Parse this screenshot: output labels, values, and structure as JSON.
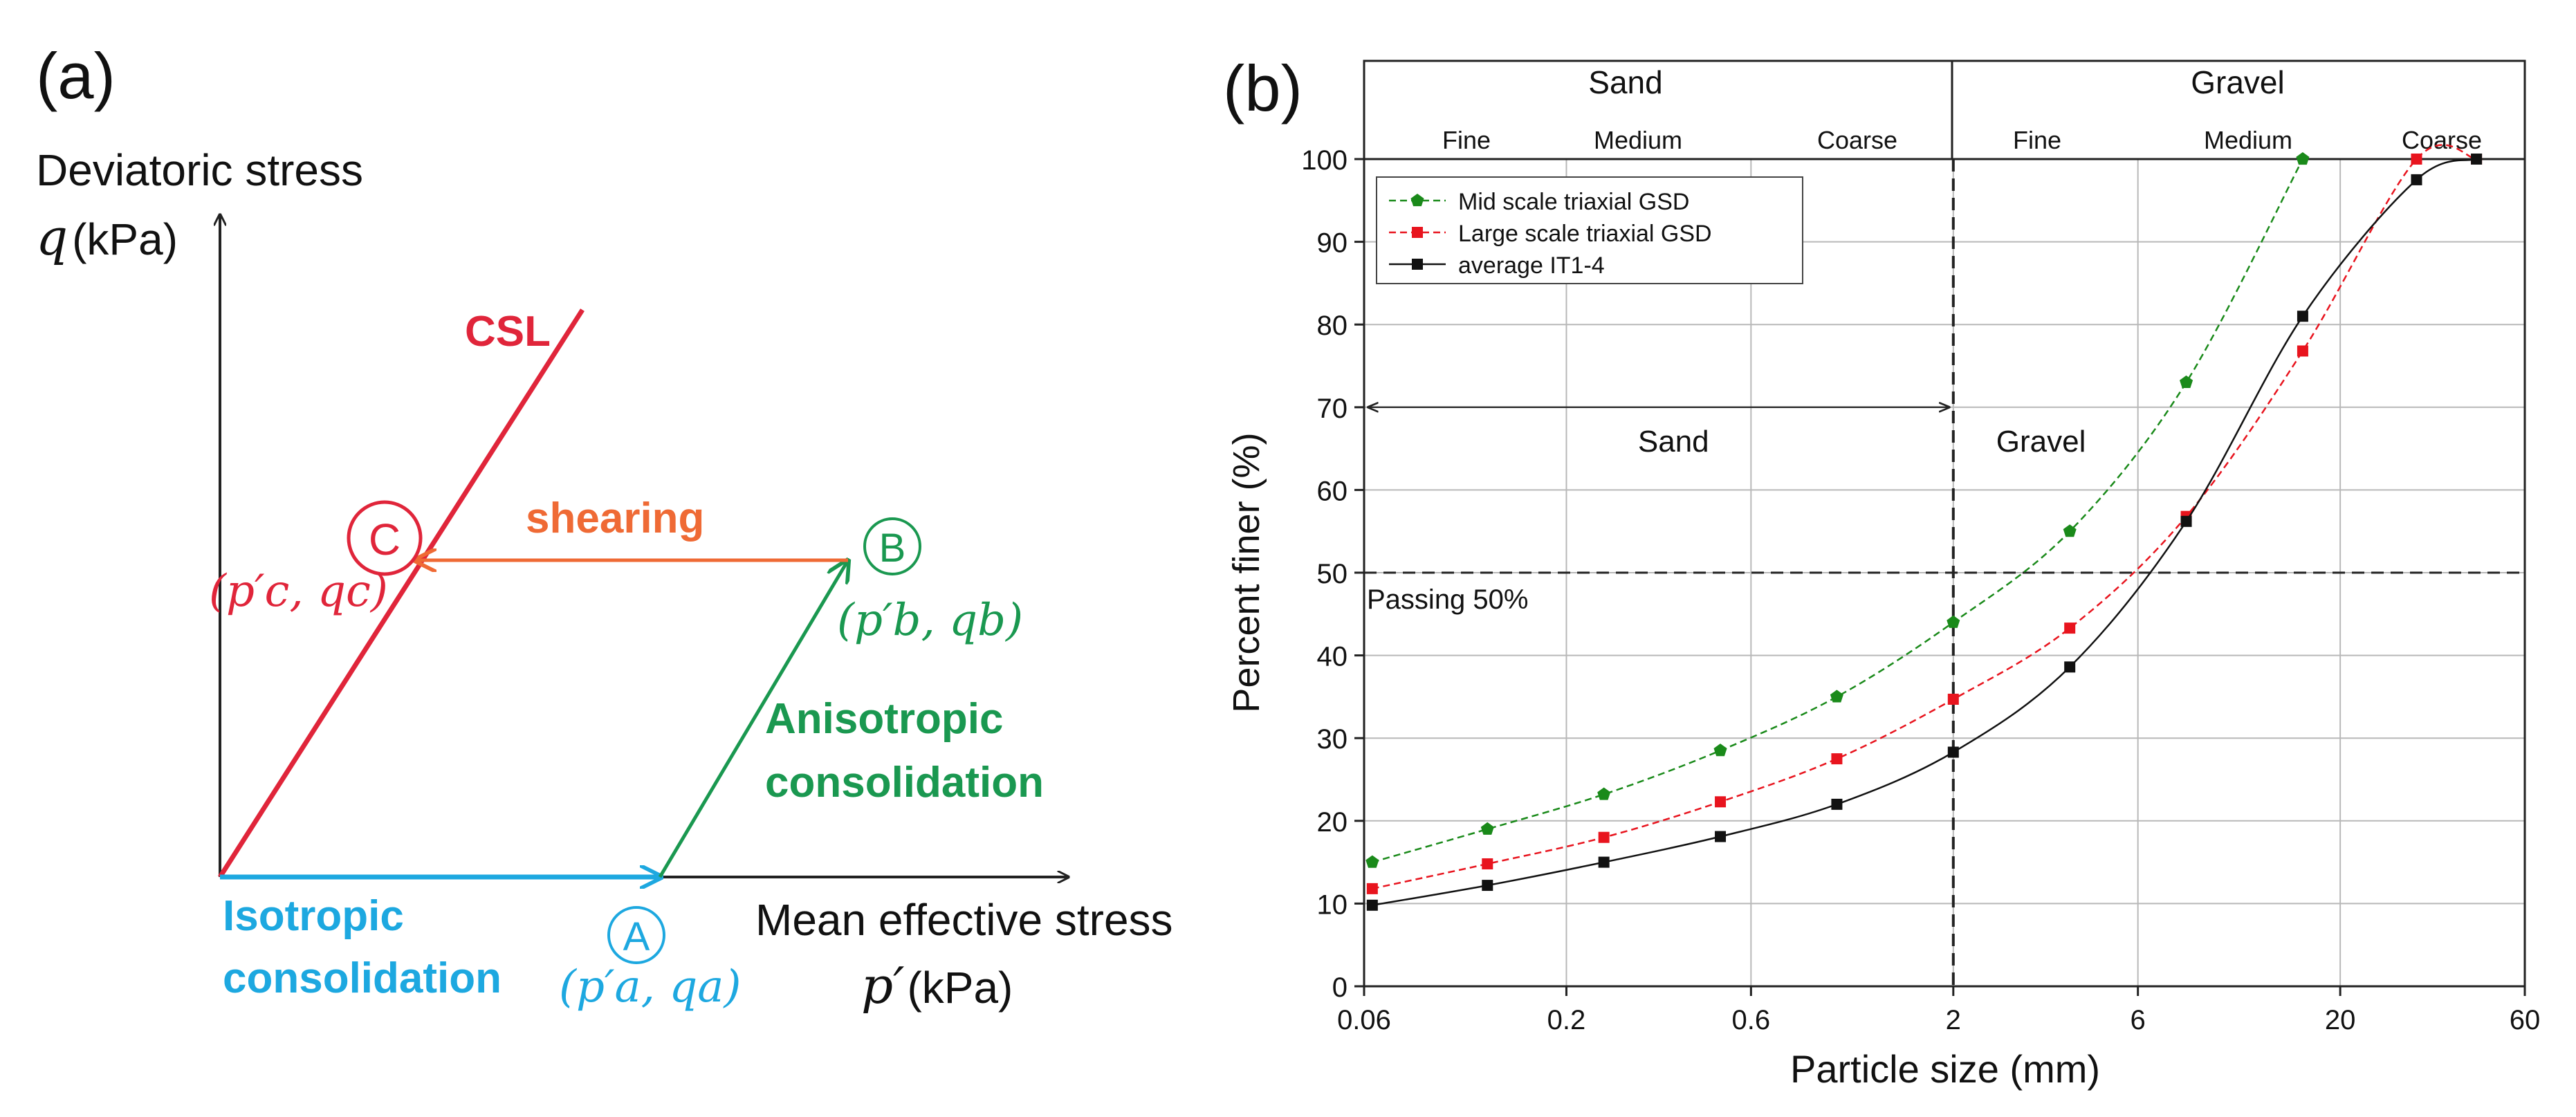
{
  "panel_a": {
    "panel_label": "(a)",
    "y_axis_title": "Deviatoric stress",
    "y_axis_symbol": "q",
    "y_axis_unit": "(kPa)",
    "x_axis_title": "Mean effective stress",
    "x_axis_symbol": "p′",
    "x_axis_unit": "(kPa)",
    "csl_label": "CSL",
    "shearing_label": "shearing",
    "anisotropic_line1": "Anisotropic",
    "anisotropic_line2": "consolidation",
    "isotropic_line1": "Isotropic",
    "isotropic_line2": "consolidation",
    "point_a": {
      "label": "A",
      "coord": "(p′a, qa)"
    },
    "point_b": {
      "label": "B",
      "coord": "(p′b, qb)"
    },
    "point_c": {
      "label": "C",
      "coord": "(p′c, qc)"
    },
    "colors": {
      "csl": "#e0253a",
      "shearing": "#ef6a35",
      "anisotropic": "#1a9850",
      "isotropic": "#1da8e0",
      "axis": "#222222"
    }
  },
  "chart_data": {
    "type": "line",
    "panel_label": "(b)",
    "title": "",
    "xlabel": "Particle size (mm)",
    "ylabel": "Percent finer (%)",
    "xscale": "log",
    "xlim": [
      0.06,
      60
    ],
    "ylim": [
      0,
      100
    ],
    "xticks": [
      0.06,
      0.2,
      0.6,
      2,
      6,
      20,
      60
    ],
    "xtick_labels": [
      "0.06",
      "0.2",
      "0.6",
      "2",
      "6",
      "20",
      "60"
    ],
    "yticks": [
      0,
      10,
      20,
      30,
      40,
      50,
      60,
      70,
      80,
      90,
      100
    ],
    "ytick_labels": [
      "0",
      "10",
      "20",
      "30",
      "40",
      "50",
      "60",
      "70",
      "80",
      "90",
      "100"
    ],
    "grid": true,
    "legend_position": "top-left",
    "series": [
      {
        "name": "Mid scale triaxial GSD",
        "color": "#1a8a1a",
        "marker": "pentagon",
        "style": "dashed",
        "x": [
          0.063,
          0.125,
          0.25,
          0.5,
          1.0,
          2.0,
          4.0,
          8.0,
          16.0
        ],
        "y": [
          15,
          19,
          23.2,
          28.5,
          35,
          44,
          55,
          73,
          100
        ]
      },
      {
        "name": "Large scale triaxial GSD",
        "color": "#e8141e",
        "marker": "square",
        "style": "dashed",
        "x": [
          0.063,
          0.125,
          0.25,
          0.5,
          1.0,
          2.0,
          4.0,
          8.0,
          16.0,
          31.5,
          45
        ],
        "y": [
          11.8,
          14.8,
          18,
          22.3,
          27.5,
          34.7,
          43.3,
          56.8,
          76.8,
          100,
          100
        ]
      },
      {
        "name": "average IT1-4",
        "color": "#111111",
        "marker": "square",
        "style": "solid",
        "x": [
          0.063,
          0.125,
          0.25,
          0.5,
          1.0,
          2.0,
          4.0,
          8.0,
          16.0,
          31.5,
          45
        ],
        "y": [
          9.8,
          12.2,
          15,
          18.1,
          22,
          28.3,
          38.6,
          56.2,
          81,
          97.5,
          100
        ]
      }
    ],
    "header": {
      "sand": "Sand",
      "gravel": "Gravel",
      "sub": [
        "Fine",
        "Medium",
        "Coarse",
        "Fine",
        "Medium",
        "Coarse"
      ]
    },
    "annotations": {
      "sand": "Sand",
      "gravel": "Gravel",
      "passing": "Passing 50%",
      "passing_value": 50,
      "arrow_y": 70,
      "boundary_x": 2
    }
  }
}
